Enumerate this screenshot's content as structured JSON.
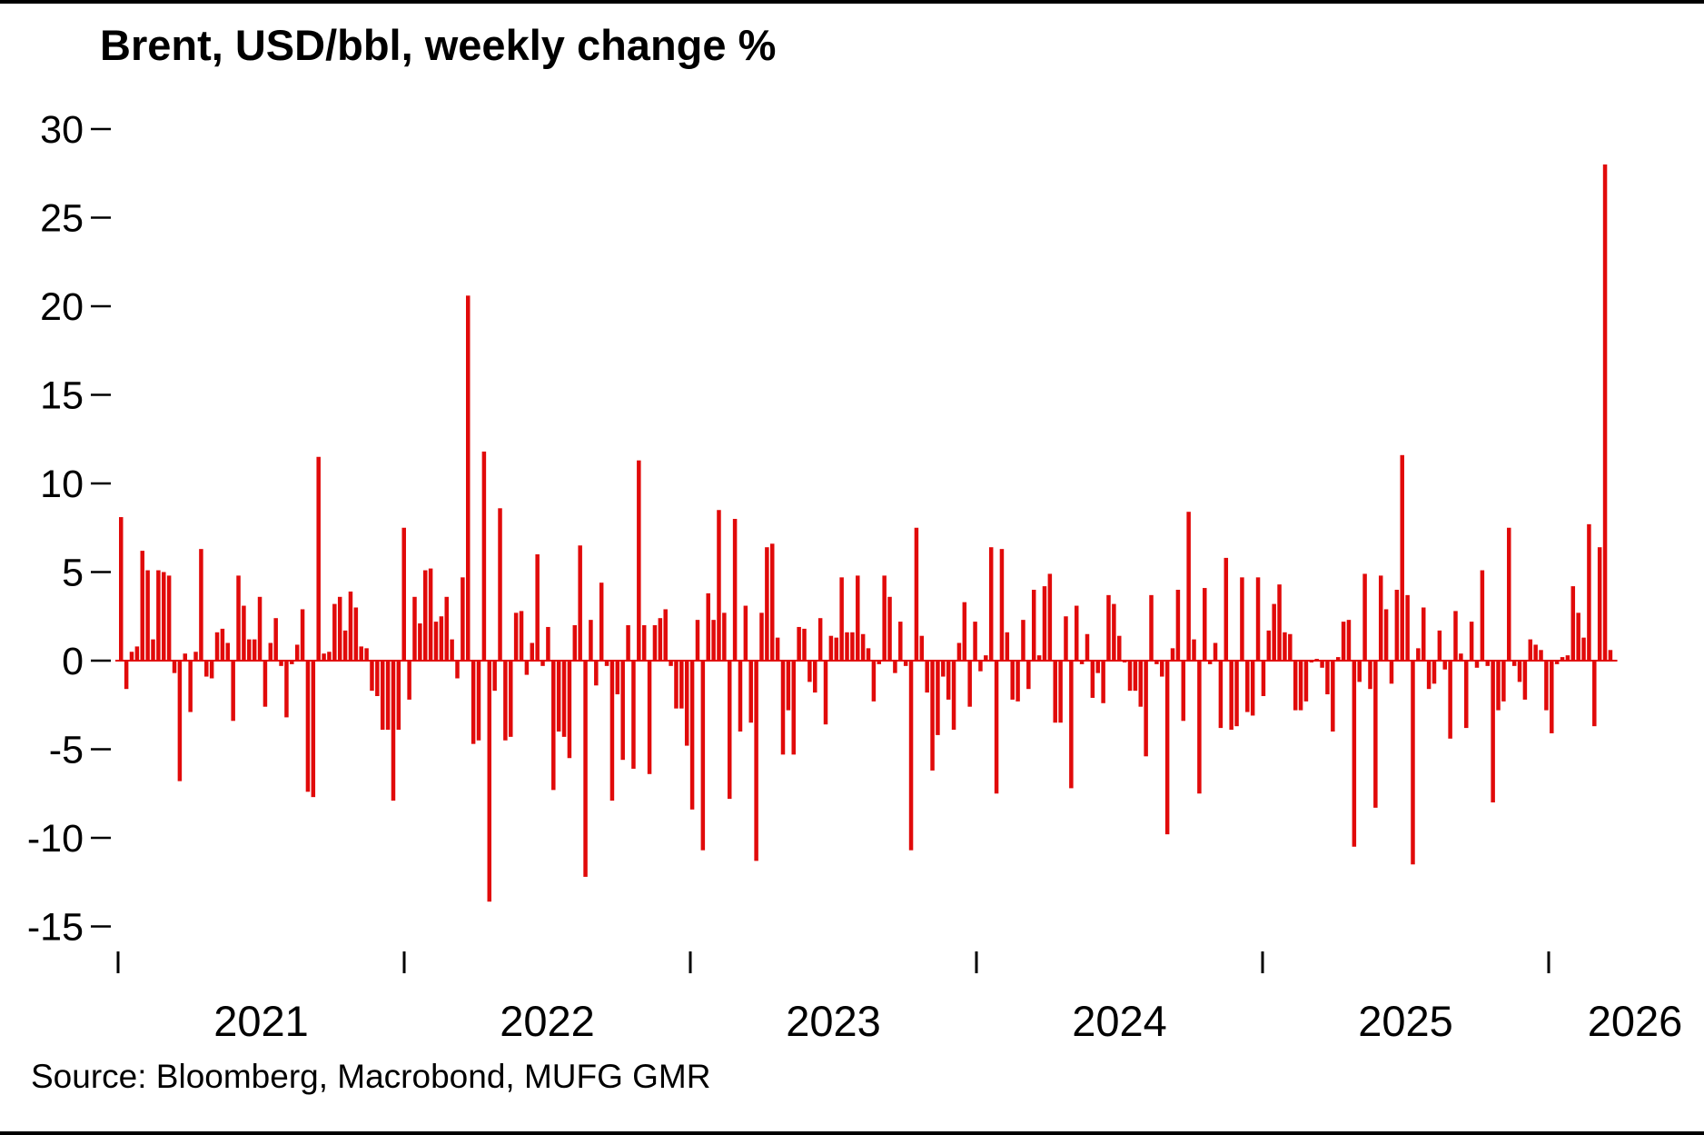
{
  "title": "Brent, USD/bbl, weekly change %",
  "source": {
    "text": "Source: Bloomberg, Macrobond, MUFG GMR"
  },
  "chart_data": {
    "type": "bar",
    "title": "Brent, USD/bbl, weekly change %",
    "xlabel": "",
    "ylabel": "",
    "ylim": [
      -15,
      30
    ],
    "grid": false,
    "legend": "none",
    "bar_color": "#e10a0a",
    "y_ticks": [
      30,
      25,
      20,
      15,
      10,
      5,
      0,
      -5,
      -10,
      -15
    ],
    "x_tick_labels": [
      "2021",
      "2022",
      "2023",
      "2024",
      "2025",
      "2026"
    ],
    "series_name": "Brent weekly change %",
    "values": [
      8.1,
      -1.6,
      0.5,
      0.8,
      6.2,
      5.1,
      1.2,
      5.1,
      5.0,
      4.8,
      -0.7,
      -6.8,
      0.4,
      -2.9,
      0.5,
      6.3,
      -0.9,
      -1.0,
      1.6,
      1.8,
      1.0,
      -3.4,
      4.8,
      3.1,
      1.2,
      1.2,
      3.6,
      -2.6,
      1.0,
      2.4,
      -0.3,
      -3.2,
      -0.2,
      0.9,
      2.9,
      -7.4,
      -7.7,
      11.5,
      0.4,
      0.5,
      3.2,
      3.6,
      1.7,
      3.9,
      3.0,
      0.8,
      0.7,
      -1.7,
      -2.0,
      -3.9,
      -3.9,
      -7.9,
      -3.9,
      7.5,
      -2.2,
      3.6,
      2.1,
      5.1,
      5.2,
      2.2,
      2.5,
      3.6,
      1.2,
      -1.0,
      4.7,
      20.6,
      -4.7,
      -4.5,
      11.8,
      -13.6,
      -1.7,
      8.6,
      -4.5,
      -4.3,
      2.7,
      2.8,
      -0.8,
      1.0,
      6.0,
      -0.3,
      1.9,
      -7.3,
      -4.0,
      -4.3,
      -5.5,
      2.0,
      6.5,
      -12.2,
      2.3,
      -1.4,
      4.4,
      -0.3,
      -7.9,
      -1.9,
      -5.6,
      2.0,
      -6.1,
      11.3,
      2.0,
      -6.4,
      2.0,
      2.4,
      2.9,
      -0.3,
      -2.7,
      -2.7,
      -4.8,
      -8.4,
      2.3,
      -10.7,
      3.8,
      2.3,
      8.5,
      2.7,
      -7.8,
      8.0,
      -4.0,
      3.1,
      -3.5,
      -11.3,
      2.7,
      6.4,
      6.6,
      1.3,
      -5.3,
      -2.8,
      -5.3,
      1.9,
      1.8,
      -1.2,
      -1.8,
      2.4,
      -3.6,
      1.4,
      1.3,
      4.7,
      1.6,
      1.6,
      4.8,
      1.5,
      0.7,
      -2.3,
      -0.2,
      4.8,
      3.6,
      -0.7,
      2.2,
      -0.3,
      -10.7,
      7.5,
      1.4,
      -1.8,
      -6.2,
      -4.2,
      -0.9,
      -2.2,
      -3.9,
      1.0,
      3.3,
      -2.6,
      2.2,
      -0.6,
      0.3,
      6.4,
      -7.5,
      6.3,
      1.6,
      -2.2,
      -2.3,
      2.3,
      -1.6,
      4.0,
      0.3,
      4.2,
      4.9,
      -3.5,
      -3.5,
      2.5,
      -7.2,
      3.1,
      -0.2,
      1.5,
      -2.1,
      -0.7,
      -2.4,
      3.7,
      3.2,
      1.4,
      -0.1,
      -1.7,
      -1.7,
      -2.6,
      -5.4,
      3.7,
      -0.2,
      -0.9,
      -9.8,
      0.7,
      4.0,
      -3.4,
      8.4,
      1.2,
      -7.5,
      4.1,
      -0.2,
      1.0,
      -3.8,
      5.8,
      -3.9,
      -3.7,
      4.7,
      -2.9,
      -3.1,
      4.7,
      -2.0,
      1.7,
      3.2,
      4.3,
      1.6,
      1.5,
      -2.8,
      -2.8,
      -2.3,
      -0.1,
      0.1,
      -0.4,
      -1.9,
      -4.0,
      0.2,
      2.2,
      2.3,
      -10.5,
      -1.2,
      4.9,
      -1.6,
      -8.3,
      4.8,
      2.9,
      -1.3,
      4.0,
      11.6,
      3.7,
      -11.5,
      0.7,
      3.0,
      -1.6,
      -1.3,
      1.7,
      -0.5,
      -4.4,
      2.8,
      0.4,
      -3.8,
      2.2,
      -0.4,
      5.1,
      -0.3,
      -8.0,
      -2.8,
      -2.3,
      7.5,
      -0.3,
      -1.2,
      -2.2,
      1.2,
      0.9,
      0.6,
      -2.8,
      -4.1,
      -0.2,
      0.2,
      0.3,
      4.2,
      2.7,
      1.3,
      7.7,
      -3.7,
      6.4,
      28.0,
      0.6
    ]
  }
}
